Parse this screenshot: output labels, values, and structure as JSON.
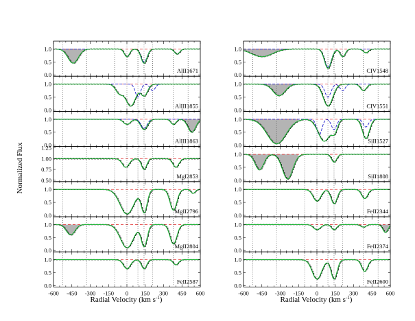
{
  "chart_data": {
    "type": "line",
    "ylabel": "Normalized Flux",
    "xlabel_left": "Radial Velocity (km s",
    "xlabel_right": "Radial Velocity (km s",
    "xlabel_sup": "-1",
    "xlabel_close": ")",
    "xlim": [
      -600,
      600
    ],
    "xticks_left": [
      -600,
      -450,
      -300,
      -150,
      0,
      150,
      300,
      450,
      600
    ],
    "xticks_right": [
      -600,
      -450,
      -300,
      -150,
      0,
      150,
      300,
      450,
      600
    ],
    "component_velocities": [
      -525,
      -330,
      -100,
      0,
      90,
      140,
      210,
      380,
      500
    ],
    "continuum_level": 1.0,
    "series_colors": {
      "data": "#111111",
      "fit": "#22b53a",
      "model": "#1a1acc",
      "continuum": "#e43b3b",
      "mask": "#b4b4b4"
    },
    "panels": [
      {
        "label": "AlII1671",
        "column": "left",
        "ylim": [
          0,
          1.25
        ],
        "yticks": [
          "0.0",
          "0.5",
          "1.0"
        ],
        "abs": [
          {
            "v": -440,
            "d": 0.55,
            "w": 60
          },
          {
            "v": 0,
            "d": 0.3,
            "w": 30
          },
          {
            "v": 140,
            "d": 0.55,
            "w": 35
          },
          {
            "v": 410,
            "d": 0.2,
            "w": 30
          }
        ],
        "mask": [
          [
            -520,
            -300
          ]
        ],
        "model_abs": [
          {
            "v": 0,
            "d": 0.3,
            "w": 30
          },
          {
            "v": 140,
            "d": 0.5,
            "w": 35
          },
          {
            "v": 410,
            "d": 0.2,
            "w": 30
          }
        ]
      },
      {
        "label": "AlIII1855",
        "column": "left",
        "ylim": [
          0,
          1.25
        ],
        "yticks": [
          "0.0",
          "0.5",
          "1.0"
        ],
        "abs": [
          {
            "v": -60,
            "d": 0.35,
            "w": 45
          },
          {
            "v": 30,
            "d": 0.85,
            "w": 60
          },
          {
            "v": 140,
            "d": 0.45,
            "w": 40
          }
        ],
        "mask": [
          [
            -600,
            -330
          ]
        ],
        "model_abs": [
          {
            "v": 90,
            "d": 0.5,
            "w": 30
          },
          {
            "v": 210,
            "d": 0.25,
            "w": 30
          }
        ]
      },
      {
        "label": "AlIII1863",
        "column": "left",
        "ylim": [
          0,
          1.25
        ],
        "yticks": [
          "0.0",
          "0.5",
          "1.0"
        ],
        "abs": [
          {
            "v": 0,
            "d": 0.2,
            "w": 40
          },
          {
            "v": 140,
            "d": 0.4,
            "w": 40
          },
          {
            "v": 380,
            "d": 0.2,
            "w": 30
          },
          {
            "v": 530,
            "d": 0.5,
            "w": 45
          }
        ],
        "mask": [
          [
            450,
            600
          ]
        ],
        "model_abs": [
          {
            "v": 140,
            "d": 0.35,
            "w": 35
          }
        ]
      },
      {
        "label": "MgI2853",
        "column": "left",
        "ylim": [
          0.5,
          1.25
        ],
        "yticks": [
          "0.50",
          "0.75",
          "1.00",
          "1.25"
        ],
        "abs": [
          {
            "v": -10,
            "d": 0.2,
            "w": 40
          },
          {
            "v": 140,
            "d": 0.25,
            "w": 30
          },
          {
            "v": 400,
            "d": 0.2,
            "w": 35
          }
        ],
        "mask": [],
        "model_abs": []
      },
      {
        "label": "MgII2796",
        "column": "left",
        "ylim": [
          0,
          1.25
        ],
        "yticks": [
          "0.0",
          "0.5",
          "1.0"
        ],
        "abs": [
          {
            "v": 0,
            "d": 0.95,
            "w": 80
          },
          {
            "v": 140,
            "d": 0.9,
            "w": 35
          },
          {
            "v": 380,
            "d": 0.8,
            "w": 40
          },
          {
            "v": 540,
            "d": 0.15,
            "w": 25
          }
        ],
        "mask": [],
        "model_abs": []
      },
      {
        "label": "MgII2804",
        "column": "left",
        "ylim": [
          0,
          1.25
        ],
        "yticks": [
          "0.0",
          "0.5",
          "1.0"
        ],
        "abs": [
          {
            "v": -460,
            "d": 0.4,
            "w": 50
          },
          {
            "v": 0,
            "d": 0.9,
            "w": 75
          },
          {
            "v": 140,
            "d": 0.85,
            "w": 35
          },
          {
            "v": 380,
            "d": 0.75,
            "w": 40
          }
        ],
        "mask": [
          [
            -540,
            -310
          ]
        ],
        "model_abs": []
      },
      {
        "label": "FeII2587",
        "column": "left",
        "ylim": [
          0,
          1.25
        ],
        "yticks": [
          "0.0",
          "0.5",
          "1.0"
        ],
        "abs": [
          {
            "v": 0,
            "d": 0.35,
            "w": 40
          },
          {
            "v": 140,
            "d": 0.35,
            "w": 30
          },
          {
            "v": 400,
            "d": 0.2,
            "w": 30
          }
        ],
        "mask": [],
        "model_abs": []
      },
      {
        "label": "CIV1548",
        "column": "right",
        "ylim": [
          0,
          1.25
        ],
        "yticks": [
          "0.0",
          "0.5",
          "1.0"
        ],
        "abs": [
          {
            "v": -450,
            "d": 0.3,
            "w": 120
          },
          {
            "v": 90,
            "d": 0.75,
            "w": 40
          },
          {
            "v": 210,
            "d": 0.3,
            "w": 30
          },
          {
            "v": 400,
            "d": 0.15,
            "w": 30
          }
        ],
        "mask": [
          [
            -600,
            -30
          ]
        ],
        "model_abs": [
          {
            "v": 90,
            "d": 0.7,
            "w": 40
          },
          {
            "v": 210,
            "d": 0.3,
            "w": 30
          }
        ]
      },
      {
        "label": "CIV1551",
        "column": "right",
        "ylim": [
          0,
          1.25
        ],
        "yticks": [
          "0.0",
          "0.5",
          "1.0"
        ],
        "abs": [
          {
            "v": -310,
            "d": 0.45,
            "w": 70
          },
          {
            "v": 90,
            "d": 0.85,
            "w": 55
          },
          {
            "v": 380,
            "d": 0.25,
            "w": 35
          }
        ],
        "mask": [
          [
            -600,
            -30
          ]
        ],
        "model_abs": [
          {
            "v": 90,
            "d": 0.5,
            "w": 35
          },
          {
            "v": 210,
            "d": 0.25,
            "w": 30
          }
        ]
      },
      {
        "label": "SiII1527",
        "column": "right",
        "ylim": [
          0,
          1.25
        ],
        "yticks": [
          "0.0",
          "0.5",
          "1.0"
        ],
        "abs": [
          {
            "v": -330,
            "d": 0.95,
            "w": 110
          },
          {
            "v": 60,
            "d": 0.85,
            "w": 70
          },
          {
            "v": 140,
            "d": 0.5,
            "w": 35
          },
          {
            "v": 400,
            "d": 0.75,
            "w": 40
          }
        ],
        "mask": [
          [
            -600,
            -150
          ]
        ],
        "model_abs": [
          {
            "v": 20,
            "d": 0.6,
            "w": 30
          },
          {
            "v": 140,
            "d": 0.4,
            "w": 30
          },
          {
            "v": 400,
            "d": 0.3,
            "w": 30
          }
        ]
      },
      {
        "label": "SiII1808",
        "column": "right",
        "ylim": [
          0,
          1.25
        ],
        "yticks": [
          "0.0",
          "0.5",
          "1.0"
        ],
        "abs": [
          {
            "v": -470,
            "d": 0.6,
            "w": 50
          },
          {
            "v": -240,
            "d": 0.95,
            "w": 60
          },
          {
            "v": 140,
            "d": 0.3,
            "w": 30
          }
        ],
        "mask": [
          [
            -600,
            -150
          ]
        ],
        "model_abs": []
      },
      {
        "label": "FeII2344",
        "column": "right",
        "ylim": [
          0,
          1.25
        ],
        "yticks": [
          "0.0",
          "0.5",
          "1.0"
        ],
        "abs": [
          {
            "v": 0,
            "d": 0.45,
            "w": 45
          },
          {
            "v": 140,
            "d": 0.55,
            "w": 35
          },
          {
            "v": 390,
            "d": 0.35,
            "w": 35
          }
        ],
        "mask": [],
        "model_abs": []
      },
      {
        "label": "FeII2374",
        "column": "right",
        "ylim": [
          0,
          1.25
        ],
        "yticks": [
          "0.0",
          "0.5",
          "1.0"
        ],
        "abs": [
          {
            "v": 0,
            "d": 0.2,
            "w": 40
          },
          {
            "v": 140,
            "d": 0.2,
            "w": 30
          },
          {
            "v": 380,
            "d": 0.1,
            "w": 30
          },
          {
            "v": 560,
            "d": 0.3,
            "w": 30
          }
        ],
        "mask": [
          [
            500,
            600
          ]
        ],
        "model_abs": []
      },
      {
        "label": "FeII2600",
        "column": "right",
        "ylim": [
          0,
          1.25
        ],
        "yticks": [
          "0.0",
          "0.5",
          "1.0"
        ],
        "abs": [
          {
            "v": 0,
            "d": 0.75,
            "w": 55
          },
          {
            "v": 140,
            "d": 0.75,
            "w": 35
          },
          {
            "v": 390,
            "d": 0.45,
            "w": 35
          }
        ],
        "mask": [],
        "model_abs": []
      }
    ]
  }
}
